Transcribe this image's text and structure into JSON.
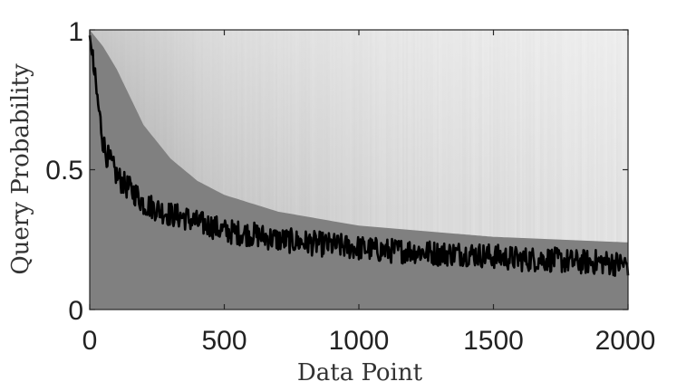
{
  "chart_data": {
    "type": "line",
    "title": "",
    "xlabel": "Data Point",
    "ylabel": "Query Probability",
    "xlim": [
      0,
      2000
    ],
    "ylim": [
      0,
      1
    ],
    "x_ticks": [
      0,
      500,
      1000,
      1500,
      2000
    ],
    "y_ticks": [
      0,
      0.5,
      1
    ],
    "x_tick_labels": [
      "0",
      "500",
      "1000",
      "1500",
      "2000"
    ],
    "y_tick_labels": [
      "0",
      "0.5",
      "1"
    ],
    "grid": false,
    "series": [
      {
        "role": "mean",
        "color": "#000000",
        "x": [
          0,
          10,
          20,
          30,
          40,
          50,
          60,
          70,
          80,
          90,
          100,
          125,
          150,
          175,
          200,
          250,
          300,
          350,
          400,
          450,
          500,
          600,
          700,
          800,
          900,
          1000,
          1100,
          1200,
          1300,
          1400,
          1500,
          1600,
          1700,
          1800,
          1900,
          2000
        ],
        "y": [
          0.98,
          0.9,
          0.82,
          0.74,
          0.67,
          0.6,
          0.56,
          0.54,
          0.52,
          0.5,
          0.48,
          0.45,
          0.43,
          0.41,
          0.38,
          0.36,
          0.34,
          0.33,
          0.31,
          0.3,
          0.28,
          0.27,
          0.25,
          0.24,
          0.23,
          0.22,
          0.21,
          0.21,
          0.2,
          0.2,
          0.19,
          0.18,
          0.18,
          0.17,
          0.17,
          0.16
        ]
      }
    ],
    "band": {
      "role": "individual runs (envelope)",
      "color": "#808080",
      "x": [
        0,
        50,
        100,
        150,
        200,
        300,
        400,
        500,
        700,
        1000,
        1500,
        2000
      ],
      "dense_upper": [
        1.0,
        0.94,
        0.86,
        0.76,
        0.66,
        0.54,
        0.46,
        0.41,
        0.35,
        0.3,
        0.26,
        0.24
      ],
      "dense_lower": [
        0.0,
        0.0,
        0.0,
        0.0,
        0.0,
        0.0,
        0.0,
        0.0,
        0.0,
        0.0,
        0.0,
        0.0
      ],
      "light_upper": 1.0
    }
  }
}
